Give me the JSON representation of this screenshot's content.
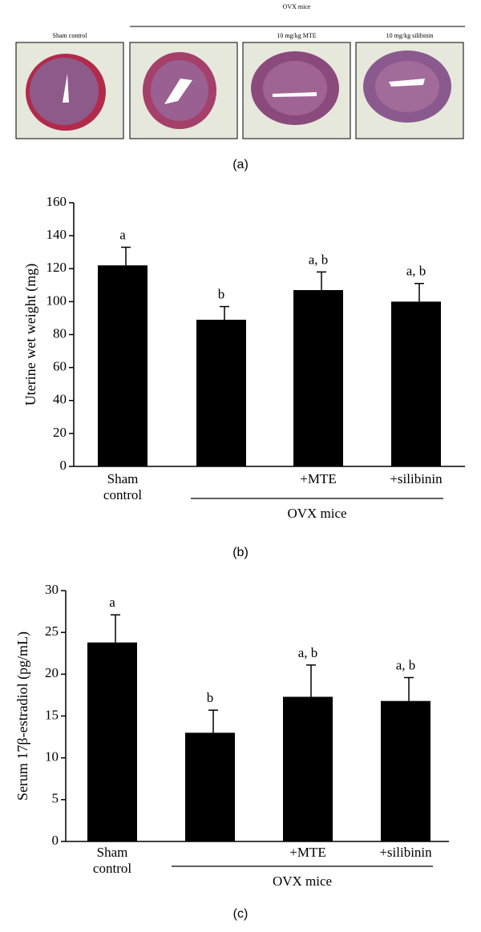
{
  "panel_a": {
    "group_label": "OVX mice",
    "image_labels": [
      "Sham control",
      "10 mg/kg MTE",
      "10 mg/kg silibinin"
    ]
  },
  "panel_labels": [
    "(a)",
    "(b)",
    "(c)"
  ],
  "chart_data": [
    {
      "type": "bar",
      "ylabel": "Uterine wet weight (mg)",
      "categories": [
        "Sham control",
        null,
        "+MTE",
        "+silibinin"
      ],
      "group_label": "OVX mice",
      "values": [
        122,
        89,
        107,
        100
      ],
      "errors": [
        11,
        8,
        11,
        11
      ],
      "annotations": [
        "a",
        "b",
        "a, b",
        "a, b"
      ],
      "color": "#000000",
      "ylim": [
        0,
        160
      ],
      "yticks": [
        0,
        20,
        40,
        60,
        80,
        100,
        120,
        140,
        160
      ]
    },
    {
      "type": "bar",
      "ylabel": "Serum 17β-estradiol (pg/mL)",
      "categories": [
        "Sham control",
        null,
        "+MTE",
        "+silibinin"
      ],
      "group_label": "OVX mice",
      "values": [
        23.8,
        13,
        17.3,
        16.8
      ],
      "errors": [
        3.3,
        2.7,
        3.8,
        2.8
      ],
      "annotations": [
        "a",
        "b",
        "a, b",
        "a, b"
      ],
      "color": "#000000",
      "ylim": [
        0,
        30
      ],
      "yticks": [
        0,
        5,
        10,
        15,
        20,
        25,
        30
      ]
    }
  ]
}
